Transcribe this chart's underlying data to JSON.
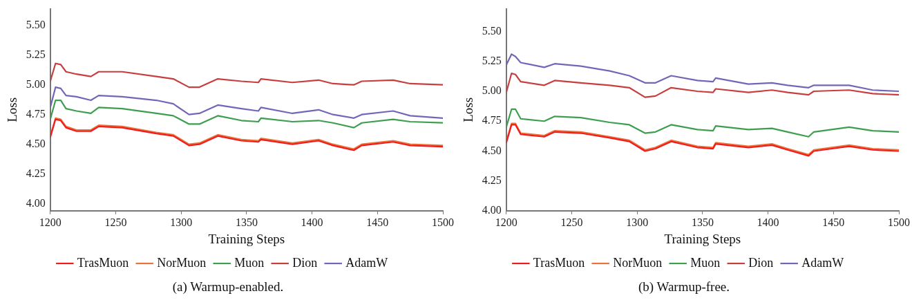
{
  "chart_data": [
    {
      "type": "line",
      "xlabel": "Training Steps",
      "ylabel": "Loss",
      "legend": "bottom",
      "grid": false,
      "marker": "none",
      "line_style": "solid",
      "xlim": [
        1200,
        1500
      ],
      "xticks": [
        1200,
        1250,
        1300,
        1350,
        1400,
        1450,
        1500
      ],
      "ylim": [
        3.94,
        5.64
      ],
      "yticks": [
        {
          "value": 4,
          "label": "4.00"
        },
        {
          "value": 4.25,
          "label": "4.25"
        },
        {
          "value": 4.5,
          "label": "4.50"
        },
        {
          "value": 4.75,
          "label": "4.75"
        },
        {
          "value": 5,
          "label": "5.00"
        },
        {
          "value": 5.25,
          "label": "5.25"
        },
        {
          "value": 5.5,
          "label": "5.50"
        }
      ],
      "x": [
        1200,
        1204,
        1208,
        1212,
        1220,
        1231,
        1237,
        1255,
        1281,
        1294,
        1306,
        1314,
        1328,
        1346,
        1359,
        1361,
        1385,
        1405,
        1416,
        1432,
        1438,
        1462,
        1475,
        1500
      ],
      "series": [
        {
          "name": "TrasMuon",
          "color": "#f01c1c",
          "values": [
            4.56,
            4.71,
            4.7,
            4.64,
            4.61,
            4.61,
            4.65,
            4.64,
            4.59,
            4.57,
            4.49,
            4.5,
            4.57,
            4.53,
            4.52,
            4.54,
            4.5,
            4.53,
            4.49,
            4.45,
            4.49,
            4.52,
            4.49,
            4.48
          ]
        },
        {
          "name": "NorMuon",
          "color": "#e8743b",
          "values": [
            4.57,
            4.72,
            4.71,
            4.65,
            4.62,
            4.62,
            4.66,
            4.65,
            4.6,
            4.58,
            4.5,
            4.51,
            4.58,
            4.54,
            4.53,
            4.55,
            4.51,
            4.54,
            4.5,
            4.46,
            4.5,
            4.53,
            4.5,
            4.49
          ]
        },
        {
          "name": "Muon",
          "color": "#3d9e4f",
          "values": [
            4.71,
            4.87,
            4.87,
            4.8,
            4.78,
            4.76,
            4.81,
            4.8,
            4.76,
            4.74,
            4.67,
            4.67,
            4.74,
            4.7,
            4.69,
            4.72,
            4.69,
            4.7,
            4.68,
            4.64,
            4.68,
            4.71,
            4.69,
            4.68
          ]
        },
        {
          "name": "Dion",
          "color": "#c83e3e",
          "values": [
            5.03,
            5.18,
            5.17,
            5.11,
            5.09,
            5.07,
            5.11,
            5.11,
            5.07,
            5.05,
            4.98,
            4.98,
            5.05,
            5.03,
            5.02,
            5.05,
            5.02,
            5.04,
            5.01,
            5.0,
            5.03,
            5.04,
            5.01,
            5.0
          ]
        },
        {
          "name": "AdamW",
          "color": "#7366b8",
          "values": [
            4.81,
            4.98,
            4.97,
            4.91,
            4.9,
            4.87,
            4.91,
            4.9,
            4.87,
            4.84,
            4.75,
            4.76,
            4.83,
            4.8,
            4.78,
            4.81,
            4.76,
            4.79,
            4.75,
            4.72,
            4.75,
            4.78,
            4.74,
            4.72
          ]
        }
      ],
      "annotations": [
        "(a) Warmup-enabled."
      ]
    },
    {
      "type": "line",
      "xlabel": "Training Steps",
      "ylabel": "Loss",
      "legend": "bottom",
      "grid": false,
      "marker": "none",
      "line_style": "solid",
      "xlim": [
        1200,
        1500
      ],
      "xticks": [
        1200,
        1250,
        1300,
        1350,
        1400,
        1450,
        1500
      ],
      "ylim": [
        4.0,
        5.69
      ],
      "yticks": [
        {
          "value": 4,
          "label": "4.00"
        },
        {
          "value": 4.25,
          "label": "4.25"
        },
        {
          "value": 4.5,
          "label": "4.50"
        },
        {
          "value": 4.75,
          "label": "4.75"
        },
        {
          "value": 5,
          "label": "5.00"
        },
        {
          "value": 5.25,
          "label": "5.25"
        },
        {
          "value": 5.5,
          "label": "5.50"
        }
      ],
      "x": [
        1200,
        1204,
        1207,
        1211,
        1229,
        1237,
        1257,
        1279,
        1294,
        1306,
        1314,
        1326,
        1346,
        1358,
        1360,
        1385,
        1403,
        1415,
        1431,
        1435,
        1462,
        1480,
        1500
      ],
      "series": [
        {
          "name": "TrasMuon",
          "color": "#f01c1c",
          "values": [
            4.57,
            4.72,
            4.72,
            4.64,
            4.62,
            4.66,
            4.65,
            4.61,
            4.58,
            4.5,
            4.52,
            4.58,
            4.53,
            4.52,
            4.56,
            4.53,
            4.55,
            4.51,
            4.46,
            4.5,
            4.54,
            4.51,
            4.5
          ]
        },
        {
          "name": "NorMuon",
          "color": "#e8743b",
          "values": [
            4.58,
            4.73,
            4.73,
            4.65,
            4.63,
            4.67,
            4.66,
            4.62,
            4.59,
            4.51,
            4.53,
            4.59,
            4.54,
            4.53,
            4.57,
            4.54,
            4.56,
            4.52,
            4.47,
            4.51,
            4.55,
            4.52,
            4.51
          ]
        },
        {
          "name": "Muon",
          "color": "#3d9e4f",
          "values": [
            4.7,
            4.85,
            4.85,
            4.77,
            4.75,
            4.79,
            4.78,
            4.74,
            4.72,
            4.65,
            4.66,
            4.72,
            4.68,
            4.67,
            4.71,
            4.68,
            4.69,
            4.66,
            4.62,
            4.66,
            4.7,
            4.67,
            4.66
          ]
        },
        {
          "name": "Dion",
          "color": "#c83e3e",
          "values": [
            4.99,
            5.15,
            5.14,
            5.08,
            5.05,
            5.09,
            5.07,
            5.05,
            5.03,
            4.95,
            4.96,
            5.03,
            5.0,
            4.99,
            5.02,
            4.99,
            5.01,
            4.99,
            4.97,
            5.0,
            5.01,
            4.98,
            4.97
          ]
        },
        {
          "name": "AdamW",
          "color": "#7366b8",
          "values": [
            5.22,
            5.31,
            5.29,
            5.24,
            5.2,
            5.23,
            5.21,
            5.17,
            5.13,
            5.07,
            5.07,
            5.13,
            5.09,
            5.08,
            5.11,
            5.06,
            5.07,
            5.05,
            5.03,
            5.05,
            5.05,
            5.01,
            5.0
          ]
        }
      ],
      "annotations": [
        "(b) Warmup-free."
      ]
    }
  ]
}
